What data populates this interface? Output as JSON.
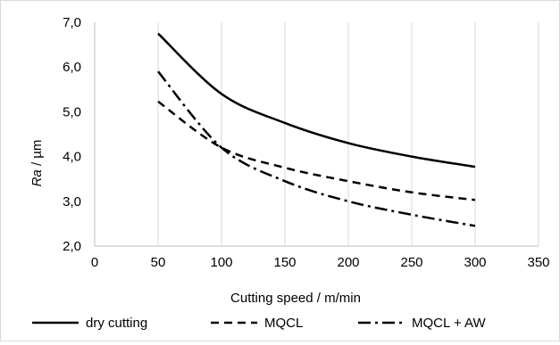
{
  "chart_data": {
    "type": "line",
    "title": "",
    "xlabel": "Cutting speed / m/min",
    "ylabel_italic": "Ra",
    "ylabel_rest": " / µm",
    "xlim": [
      0,
      350
    ],
    "ylim": [
      2.0,
      7.0
    ],
    "xticks": [
      0,
      50,
      100,
      150,
      200,
      250,
      300,
      350
    ],
    "yticks": [
      "2,0",
      "3,0",
      "4,0",
      "5,0",
      "6,0",
      "7,0"
    ],
    "ytick_values": [
      2,
      3,
      4,
      5,
      6,
      7
    ],
    "grid": "vertical",
    "legend_position": "bottom",
    "series": [
      {
        "name": "dry cutting",
        "dash": "solid",
        "x": [
          50,
          100,
          150,
          200,
          250,
          300
        ],
        "y": [
          6.75,
          5.4,
          4.75,
          4.3,
          4.0,
          3.77
        ]
      },
      {
        "name": "MQCL",
        "dash": "dashed",
        "x": [
          50,
          100,
          150,
          200,
          250,
          300
        ],
        "y": [
          5.23,
          4.2,
          3.75,
          3.45,
          3.2,
          3.03
        ]
      },
      {
        "name": "MQCL + AW",
        "dash": "dashdot",
        "x": [
          50,
          100,
          150,
          200,
          250,
          300
        ],
        "y": [
          5.9,
          4.2,
          3.45,
          3.0,
          2.7,
          2.45
        ]
      }
    ]
  }
}
